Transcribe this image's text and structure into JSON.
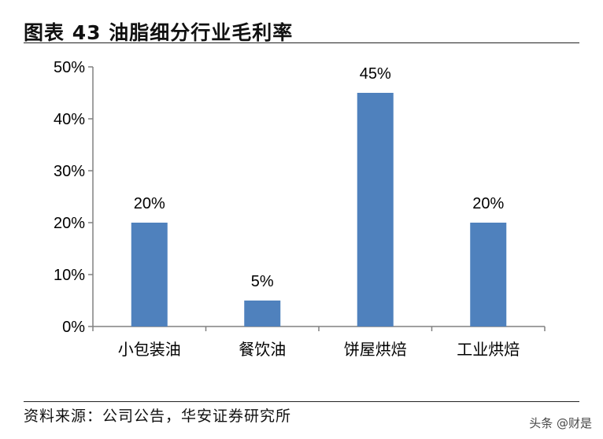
{
  "header": {
    "title": "图表 43 油脂细分行业毛利率"
  },
  "footer": {
    "source": "资料来源：公司公告，华安证券研究所"
  },
  "watermark": {
    "text": "头条 @财是"
  },
  "chart_data": {
    "type": "bar",
    "title": "",
    "xlabel": "",
    "ylabel": "",
    "categories": [
      "小包装油",
      "餐饮油",
      "饼屋烘焙",
      "工业烘焙"
    ],
    "values": [
      0.2,
      0.05,
      0.45,
      0.2
    ],
    "data_labels": [
      "20%",
      "5%",
      "45%",
      "20%"
    ],
    "ylim": [
      0,
      0.5
    ],
    "y_ticks": [
      0,
      0.1,
      0.2,
      0.3,
      0.4,
      0.5
    ],
    "y_tick_labels": [
      "0%",
      "10%",
      "20%",
      "30%",
      "40%",
      "50%"
    ],
    "bar_color": "#4f81bd",
    "grid": false,
    "legend": "none"
  }
}
